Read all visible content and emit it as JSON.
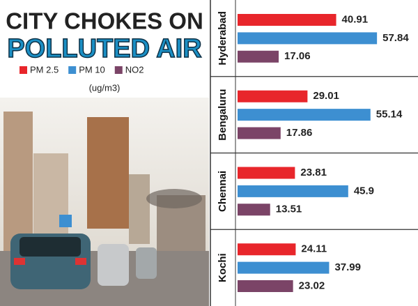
{
  "chart_data": {
    "type": "bar",
    "orientation": "horizontal",
    "title": "CITY CHOKES ON",
    "subtitle": "POLLUTED AIR",
    "unit_note": "(ug/m3)",
    "categories": [
      "Hyderabad",
      "Bengaluru",
      "Chennai",
      "Kochi"
    ],
    "series": [
      {
        "name": "PM 2.5",
        "color": "#e8262b",
        "values": [
          40.91,
          29.01,
          23.81,
          24.11
        ]
      },
      {
        "name": "PM 10",
        "color": "#3d8fd1",
        "values": [
          57.84,
          55.14,
          45.9,
          37.99
        ]
      },
      {
        "name": "NO2",
        "color": "#7b4467",
        "values": [
          17.06,
          17.86,
          13.51,
          23.02
        ]
      }
    ]
  }
}
